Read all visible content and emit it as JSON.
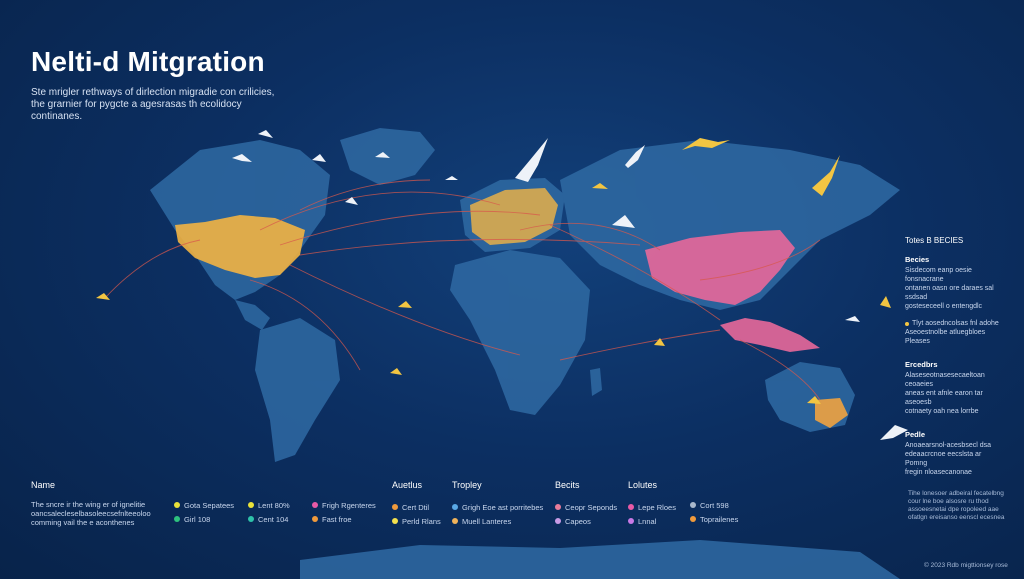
{
  "header": {
    "title": "Nelti-d Mitgration",
    "subtitle": "Ste mrigler rethways of dirlection migradie con crilicies, the grarnier for pygcte a agesrasas th ecolidocy continanes."
  },
  "side_panel": {
    "title": "Totes B BECIES",
    "sections": [
      {
        "heading": "Becies",
        "lines": [
          "Sisdecom eanp oesie fonsnacrane",
          "ontanen oasn ore daraes sal ssdsad",
          "gosteseceell o entengdlc"
        ],
        "items": [
          {
            "label": "Tlyt aosedncolsas fnl adohe",
            "color": "#f4c542"
          },
          {
            "label": "Aseoestnolbe atluegbloes",
            "color": ""
          },
          {
            "label": "Pleases",
            "color": ""
          }
        ]
      },
      {
        "heading": "Ercedbrs",
        "lines": [
          "Alaseseotnasesecaeltoan ceoaeies",
          "aneas ent afnle earon tar aseoesb",
          "cotnaety oah nea lorrbe"
        ]
      },
      {
        "heading": "Pedle",
        "lines": [
          "Anoaearsnol-acesbsecl dsa",
          "edeaacrcnoe eecslsta ar Pomng",
          "fregin nloasecanonae"
        ]
      }
    ]
  },
  "bottom": {
    "name_column": {
      "heading": "Name",
      "desc": "The sncre ir the wing er of ignelitie oancsalecleselbasoleecsefnlteeoloo comming vail the e aconthenes"
    },
    "legend_groups": [
      {
        "heading": "",
        "items": [
          {
            "label": "Gota Sepatees",
            "color": "#e9e23a"
          },
          {
            "label": "Girl 108",
            "color": "#2ec27e"
          }
        ]
      },
      {
        "heading": "",
        "items": [
          {
            "label": "Lent 80%",
            "color": "#e9e23a"
          },
          {
            "label": "Cent 104",
            "color": "#2ec2a9"
          }
        ]
      },
      {
        "heading": "",
        "items": [
          {
            "label": "Frigh Rgenteres",
            "color": "#e85aa6"
          },
          {
            "label": "Fast froe",
            "color": "#f09a3c"
          }
        ]
      },
      {
        "heading": "Auetlus",
        "items": [
          {
            "label": "Cert Dtil",
            "color": "#f09a3c"
          },
          {
            "label": "Perld Rlans",
            "color": "#f4e04d"
          }
        ]
      },
      {
        "heading": "Tropley",
        "items": [
          {
            "label": "Grigh Eoe ast porritebes",
            "color": "#5aa9e6"
          },
          {
            "label": "Muell Lanteres",
            "color": "#f0b35a"
          }
        ]
      },
      {
        "heading": "Becits",
        "items": [
          {
            "label": "Ceopr Seponds",
            "color": "#e87c9a"
          },
          {
            "label": "Capeos",
            "color": "#c89be6"
          }
        ]
      },
      {
        "heading": "Lolutes",
        "items": [
          {
            "label": "Lepe Rloes",
            "color": "#e85aa6"
          },
          {
            "label": "Lnnal",
            "color": "#c879e6"
          }
        ]
      },
      {
        "heading": "",
        "items": [
          {
            "label": "Cort 598",
            "color": "#a9b8cc"
          },
          {
            "label": "Toprailenes",
            "color": "#f09a3c"
          }
        ]
      }
    ],
    "footer_note": "Tihe lonesoer adbeiral fecatelbng cour lne boe alsosre ru thod assoeesnetai dpe ropoleed aae ofatlgn ereisanso eenscl ecesnea",
    "footer_credit": "© 2023 Rdb migttionsey rose"
  },
  "colors": {
    "ocean": "#0c2f62",
    "land": "#2f6aa3",
    "route": "#d8584c",
    "north_america": "#f2b443",
    "asia": "#e8689a",
    "bird": "#f2c542"
  }
}
